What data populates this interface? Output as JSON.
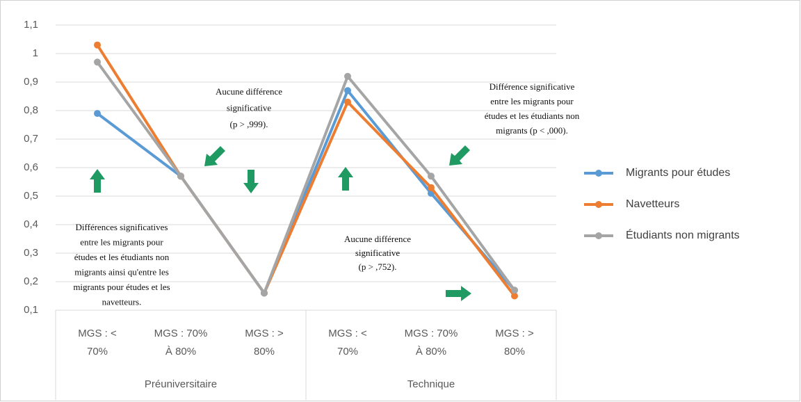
{
  "chart_data": {
    "type": "line",
    "groups": [
      {
        "name": "Préuniversitaire",
        "categories": [
          [
            "MGS : <",
            "70%"
          ],
          [
            "MGS : 70%",
            "À 80%"
          ],
          [
            "MGS : >",
            "80%"
          ]
        ]
      },
      {
        "name": "Technique",
        "categories": [
          [
            "MGS : <",
            "70%"
          ],
          [
            "MGS : 70%",
            "À 80%"
          ],
          [
            "MGS : >",
            "80%"
          ]
        ]
      }
    ],
    "series": [
      {
        "name": "Migrants pour études",
        "color": "#5b9bd5",
        "values": [
          0.79,
          0.57,
          0.16,
          0.87,
          0.51,
          0.17
        ]
      },
      {
        "name": "Navetteurs",
        "color": "#ed7d31",
        "values": [
          1.03,
          0.57,
          0.16,
          0.83,
          0.53,
          0.15
        ]
      },
      {
        "name": "Étudiants non migrants",
        "color": "#a5a5a5",
        "values": [
          0.97,
          0.57,
          0.16,
          0.92,
          0.57,
          0.17
        ]
      }
    ],
    "ylim": [
      0.1,
      1.1
    ],
    "yticks": [
      {
        "value": 0.1,
        "label": "0,1"
      },
      {
        "value": 0.2,
        "label": "0,2"
      },
      {
        "value": 0.3,
        "label": "0,3"
      },
      {
        "value": 0.4,
        "label": "0,4"
      },
      {
        "value": 0.5,
        "label": "0,5"
      },
      {
        "value": 0.6,
        "label": "0,6"
      },
      {
        "value": 0.7,
        "label": "0,7"
      },
      {
        "value": 0.8,
        "label": "0,8"
      },
      {
        "value": 0.9,
        "label": "0,9"
      },
      1,
      {
        "value": 1.1,
        "label": "1,1"
      }
    ],
    "grid": true,
    "legend": "right",
    "annotations": [
      [
        "Différences significatives",
        "entre les migrants pour",
        "études et les étudiants non",
        "migrants ainsi qu'entre les",
        "migrants pour études et les",
        "navetteurs."
      ],
      [
        "Aucune différence",
        "significative",
        "(p > ,999)."
      ],
      [
        "Différence significative",
        "entre les migrants pour",
        "études et les étudiants non",
        "migrants (p < ,000)."
      ],
      [
        "Aucune différence",
        "significative",
        "(p > ,752)."
      ]
    ]
  }
}
